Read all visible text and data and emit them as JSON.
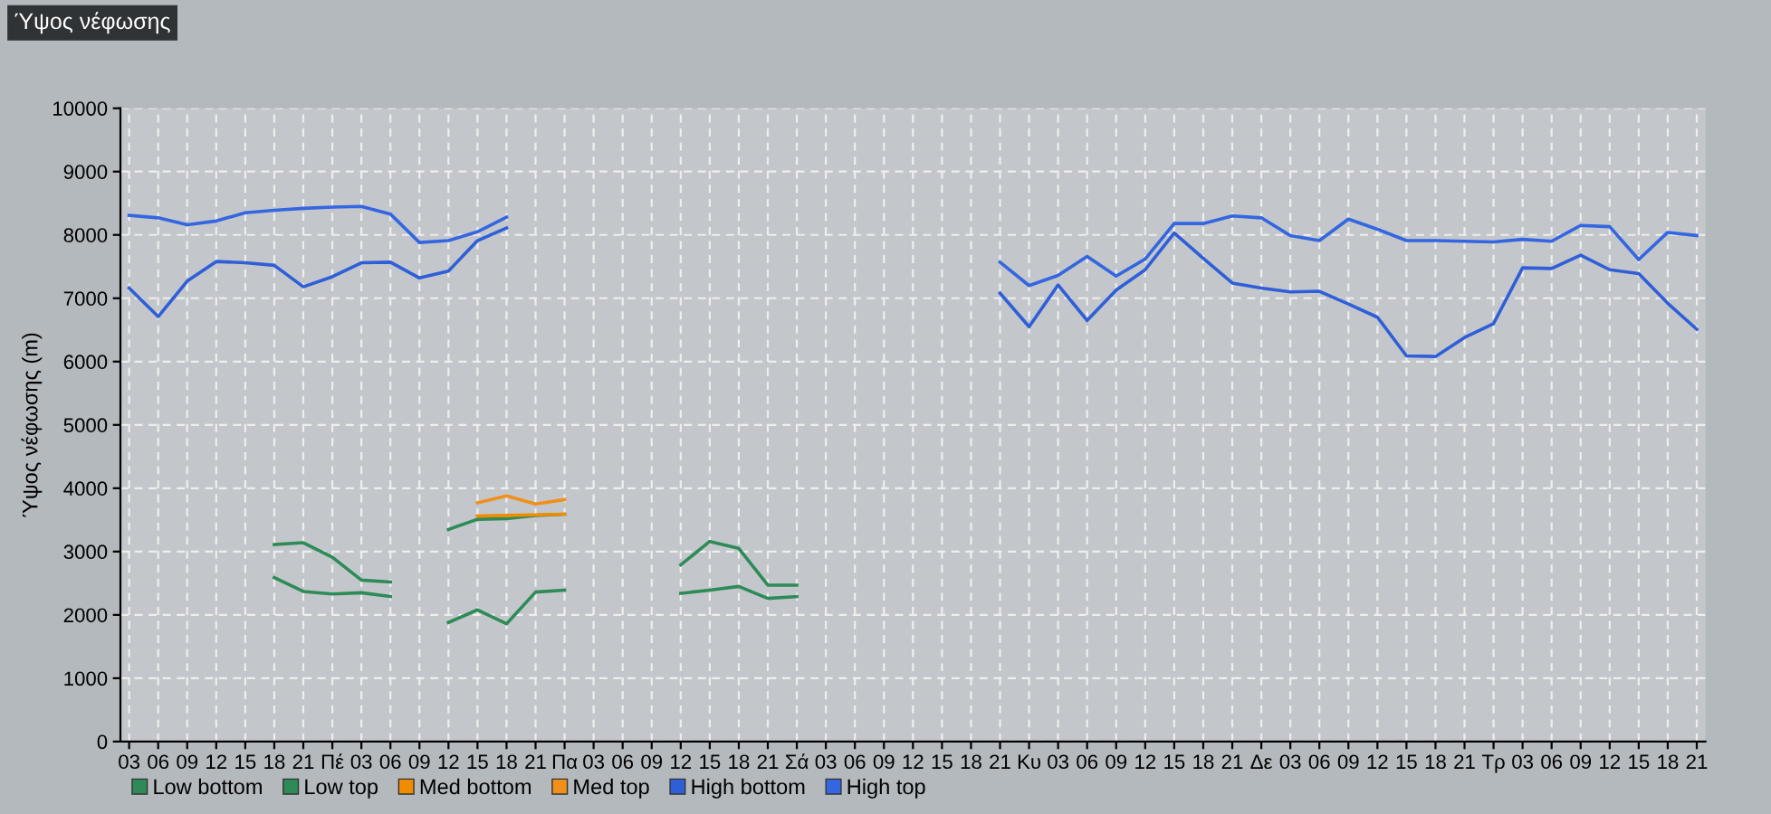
{
  "chart_data": {
    "type": "line",
    "title": "Ύψος νέφωσης",
    "ylabel": "Ύψος νέφωσης (m)",
    "categories": [
      "03",
      "06",
      "09",
      "12",
      "15",
      "18",
      "21",
      "Πέ",
      "03",
      "06",
      "09",
      "12",
      "15",
      "18",
      "21",
      "Πα",
      "03",
      "06",
      "09",
      "12",
      "15",
      "18",
      "21",
      "Σά",
      "03",
      "06",
      "09",
      "12",
      "15",
      "18",
      "21",
      "Κυ",
      "03",
      "06",
      "09",
      "12",
      "15",
      "18",
      "21",
      "Δε",
      "03",
      "06",
      "09",
      "12",
      "15",
      "18",
      "21",
      "Τρ",
      "03",
      "06",
      "09",
      "12",
      "15",
      "18",
      "21"
    ],
    "ylim": [
      0,
      10000
    ],
    "yticks": [
      0,
      1000,
      2000,
      3000,
      4000,
      5000,
      6000,
      7000,
      8000,
      9000,
      10000
    ],
    "grid": true,
    "legend": "bottom left",
    "marker": "none",
    "line_style": "solid",
    "series": [
      {
        "name": "Low bottom",
        "color": "#2e8b57",
        "values": [
          null,
          null,
          null,
          null,
          null,
          2590,
          2370,
          2330,
          2350,
          2290,
          null,
          1880,
          2080,
          1860,
          2360,
          2390,
          null,
          null,
          null,
          2340,
          2390,
          2450,
          2260,
          2290,
          null,
          null,
          null,
          null,
          null,
          null,
          null,
          null,
          null,
          null,
          null,
          null,
          null,
          null,
          null,
          null,
          null,
          null,
          null,
          null,
          null,
          null,
          null,
          null,
          null,
          null,
          null,
          null,
          null,
          null,
          null
        ]
      },
      {
        "name": "Low top",
        "color": "#2e8b57",
        "values": [
          null,
          null,
          null,
          null,
          null,
          3110,
          3140,
          2910,
          2550,
          2520,
          null,
          3350,
          3510,
          3520,
          3570,
          3590,
          null,
          null,
          null,
          2790,
          3160,
          3050,
          2470,
          2470,
          null,
          null,
          null,
          null,
          null,
          null,
          null,
          null,
          null,
          null,
          null,
          null,
          null,
          null,
          null,
          null,
          null,
          null,
          null,
          null,
          null,
          null,
          null,
          null,
          null,
          null,
          null,
          null,
          null,
          null,
          null
        ]
      },
      {
        "name": "Med bottom",
        "color": "#f08c00",
        "values": [
          null,
          null,
          null,
          null,
          null,
          null,
          null,
          null,
          null,
          null,
          null,
          null,
          3560,
          3570,
          3580,
          3590,
          null,
          null,
          null,
          null,
          null,
          null,
          null,
          null,
          null,
          null,
          null,
          null,
          null,
          null,
          null,
          null,
          null,
          null,
          null,
          null,
          null,
          null,
          null,
          null,
          null,
          null,
          null,
          null,
          null,
          null,
          null,
          null,
          null,
          null,
          null,
          null,
          null,
          null,
          null
        ]
      },
      {
        "name": "Med top",
        "color": "#f0901a",
        "values": [
          null,
          null,
          null,
          null,
          null,
          null,
          null,
          null,
          null,
          null,
          null,
          null,
          3770,
          3880,
          3750,
          3820,
          null,
          null,
          null,
          null,
          null,
          null,
          null,
          null,
          null,
          null,
          null,
          null,
          null,
          null,
          null,
          null,
          null,
          null,
          null,
          null,
          null,
          null,
          null,
          null,
          null,
          null,
          null,
          null,
          null,
          null,
          null,
          null,
          null,
          null,
          null,
          null,
          null,
          null,
          null
        ]
      },
      {
        "name": "High bottom",
        "color": "#2f5fd8",
        "values": [
          7160,
          6710,
          7270,
          7580,
          7560,
          7520,
          7180,
          7340,
          7560,
          7570,
          7320,
          7430,
          7910,
          8110,
          null,
          null,
          null,
          null,
          null,
          null,
          null,
          null,
          null,
          null,
          null,
          null,
          null,
          null,
          null,
          null,
          7080,
          6550,
          7210,
          6650,
          7130,
          7450,
          8030,
          7630,
          7240,
          7160,
          7100,
          7110,
          6910,
          6700,
          6090,
          6080,
          6380,
          6600,
          7480,
          7470,
          7680,
          7450,
          7390,
          6920,
          6510
        ]
      },
      {
        "name": "High top",
        "color": "#3366e0",
        "values": [
          8310,
          8270,
          8160,
          8220,
          8350,
          8390,
          8420,
          8440,
          8450,
          8330,
          7880,
          7910,
          8050,
          8280,
          null,
          null,
          null,
          null,
          null,
          null,
          null,
          null,
          null,
          null,
          null,
          null,
          null,
          null,
          null,
          null,
          7570,
          7200,
          7360,
          7660,
          7350,
          7620,
          8180,
          8180,
          8300,
          8270,
          7990,
          7910,
          8250,
          8090,
          7910,
          7910,
          7900,
          7890,
          7930,
          7900,
          8150,
          8130,
          7610,
          8040,
          7990
        ]
      }
    ]
  }
}
